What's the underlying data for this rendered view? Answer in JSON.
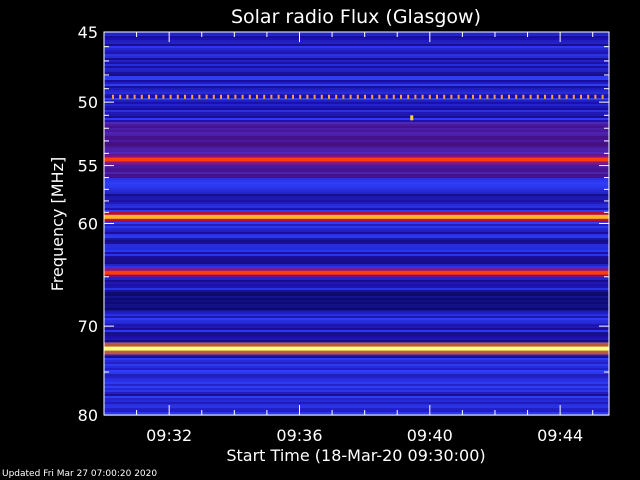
{
  "chart_data": {
    "type": "heatmap",
    "title": "Solar radio Flux (Glasgow)",
    "xlabel": "Start Time (18-Mar-20 09:30:00)",
    "ylabel": "Frequency [MHz]",
    "x_range": [
      "09:30:00",
      "09:45:30"
    ],
    "x_ticks": [
      "09:32",
      "09:36",
      "09:40",
      "09:44"
    ],
    "x_tick_minutes": [
      32,
      36,
      40,
      44
    ],
    "y_range": [
      45,
      80
    ],
    "y_scale": "log",
    "y_inverted": true,
    "y_ticks": [
      45,
      50,
      55,
      60,
      70,
      80
    ],
    "y_minor_ticks": [
      46,
      47,
      48,
      49,
      51,
      52,
      53,
      54,
      56,
      57,
      58,
      59,
      65,
      75
    ],
    "colormap": [
      "#000000",
      "#1c0aa0",
      "#3040ff",
      "#a01070",
      "#ff1010",
      "#ff9900",
      "#ffff80"
    ],
    "bright_bands": [
      {
        "freq_mhz": 54.5,
        "level": 0.72
      },
      {
        "freq_mhz": 59.4,
        "level": 0.88
      },
      {
        "freq_mhz": 64.6,
        "level": 0.72
      },
      {
        "freq_mhz": 72.4,
        "level": 1.0
      }
    ],
    "dotted_band_mhz": 49.6,
    "grid": false,
    "legend": "none"
  },
  "footer": {
    "updated": "Updated Fri Mar 27 07:00:20 2020"
  }
}
